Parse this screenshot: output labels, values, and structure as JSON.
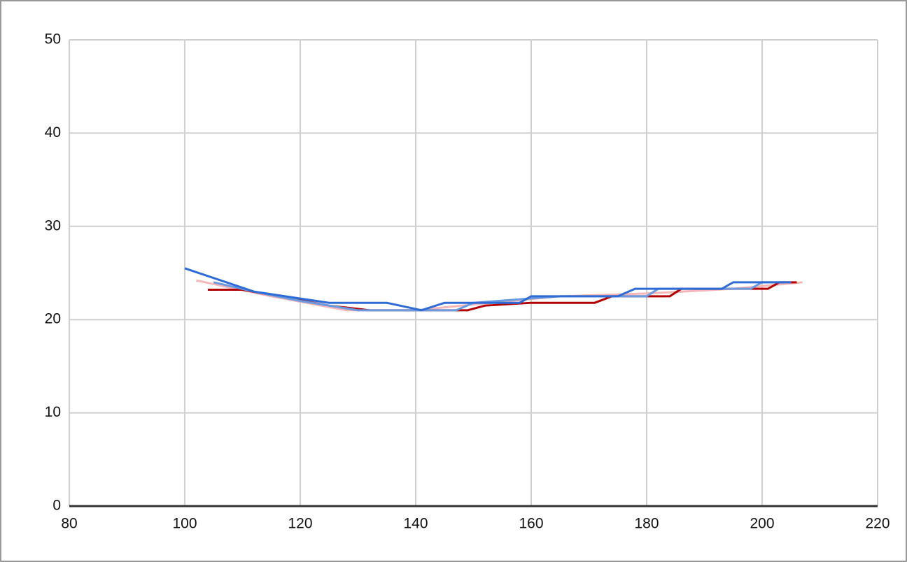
{
  "chart_data": {
    "type": "line",
    "xlim": [
      80,
      220
    ],
    "xticks": [
      80,
      100,
      120,
      140,
      160,
      180,
      200,
      220
    ],
    "ylim": [
      0,
      50
    ],
    "yticks": [
      0,
      10,
      20,
      30,
      40,
      50
    ],
    "grid": true,
    "series": [
      {
        "color": "#f4b6b6",
        "x": [
          102,
          115,
          128,
          140,
          148,
          165,
          180,
          195,
          207
        ],
        "values": [
          24.2,
          22.5,
          21,
          21,
          21.5,
          22.5,
          22.8,
          23.3,
          24
        ]
      },
      {
        "color": "#b30000",
        "x": [
          104,
          110,
          125,
          132,
          146,
          149,
          152,
          160,
          171,
          174,
          184,
          186,
          201,
          203,
          206
        ],
        "values": [
          23.2,
          23.2,
          21.5,
          21,
          21,
          21,
          21.5,
          21.8,
          21.8,
          22.5,
          22.5,
          23.3,
          23.3,
          24,
          24
        ]
      },
      {
        "color": "#6a9be0",
        "x": [
          105,
          112,
          120,
          130,
          141,
          147,
          150,
          165,
          180,
          182,
          198,
          200,
          205
        ],
        "values": [
          24,
          23,
          22,
          21,
          21,
          21,
          21.8,
          22.5,
          22.5,
          23.3,
          23.3,
          24,
          24
        ]
      },
      {
        "color": "#2d6bd6",
        "x": [
          100,
          112,
          125,
          135,
          141,
          145,
          158,
          160,
          175,
          178,
          193,
          195,
          205
        ],
        "values": [
          25.5,
          23,
          21.8,
          21.8,
          21,
          21.8,
          21.8,
          22.5,
          22.5,
          23.3,
          23.3,
          24,
          24
        ]
      }
    ]
  }
}
